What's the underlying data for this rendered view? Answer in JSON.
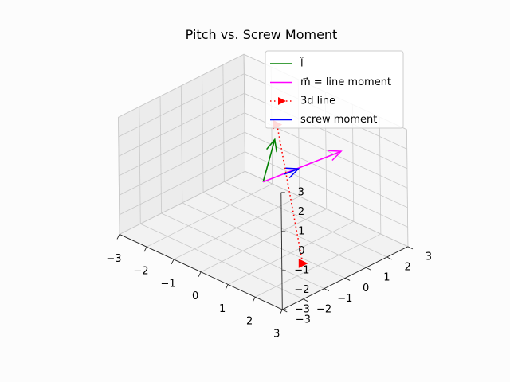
{
  "chart_data": {
    "type": "line",
    "title": "Pitch vs. Screw Moment",
    "xlim": [
      -3,
      3
    ],
    "ylim": [
      -3,
      3
    ],
    "zlim": [
      -3,
      3
    ],
    "x_ticks": [
      -3,
      -2,
      -1,
      0,
      1,
      2,
      3
    ],
    "y_ticks": [
      -3,
      -2,
      -1,
      0,
      1,
      2,
      3
    ],
    "z_ticks": [
      -3,
      -2,
      -1,
      0,
      1,
      2,
      3
    ],
    "x_tick_labels": [
      "−3",
      "−2",
      "−1",
      "0",
      "1",
      "2",
      "3"
    ],
    "y_tick_labels": [
      "−3",
      "−2",
      "−1",
      "0",
      "1",
      "2",
      "3"
    ],
    "z_tick_labels": [
      "−3",
      "−2",
      "−1",
      "0",
      "1",
      "2",
      "3"
    ],
    "grid": true,
    "legend_position": "upper-right",
    "series": [
      {
        "name": "l̂",
        "kind": "arrow",
        "color": "#008000",
        "from": [
          0,
          0,
          0
        ],
        "to": [
          -0.8,
          1.6,
          0.8
        ]
      },
      {
        "name": "m⃗ = line moment",
        "kind": "arrow",
        "color": "#ff00ff",
        "from": [
          0,
          0,
          0
        ],
        "to": [
          2.2,
          0.9,
          2.5
        ]
      },
      {
        "name": "3d line",
        "kind": "dotted-line",
        "color": "#ff0000",
        "marker": "triangle-right",
        "points": [
          [
            -1.1,
            2.1,
            1.1
          ],
          [
            2.6,
            -1.5,
            -1.7
          ]
        ]
      },
      {
        "name": "screw moment",
        "kind": "arrow",
        "color": "#0000ff",
        "from": [
          0.6,
          0.25,
          0.65
        ],
        "to": [
          1.0,
          0.4,
          1.1
        ]
      }
    ]
  }
}
